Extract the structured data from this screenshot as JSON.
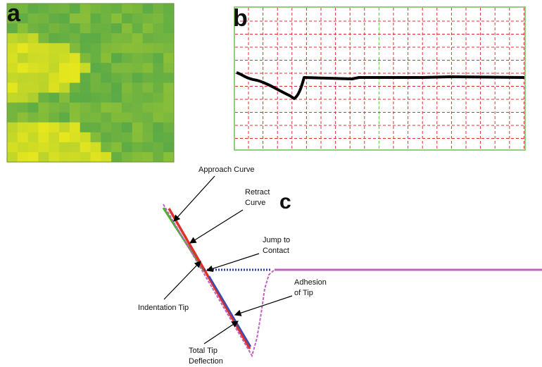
{
  "panels": {
    "a": {
      "label": "a"
    },
    "b": {
      "label": "b"
    },
    "c": {
      "label": "c",
      "annotations": [
        {
          "lines": [
            "Approach Curve"
          ]
        },
        {
          "lines": [
            "Retract",
            "Curve"
          ]
        },
        {
          "lines": [
            "Jump to",
            "Contact"
          ]
        },
        {
          "lines": [
            "Adhesion",
            "of Tip"
          ]
        },
        {
          "lines": [
            "Indentation Tip"
          ]
        },
        {
          "lines": [
            "Total Tip",
            "Deflection"
          ]
        }
      ]
    }
  }
}
